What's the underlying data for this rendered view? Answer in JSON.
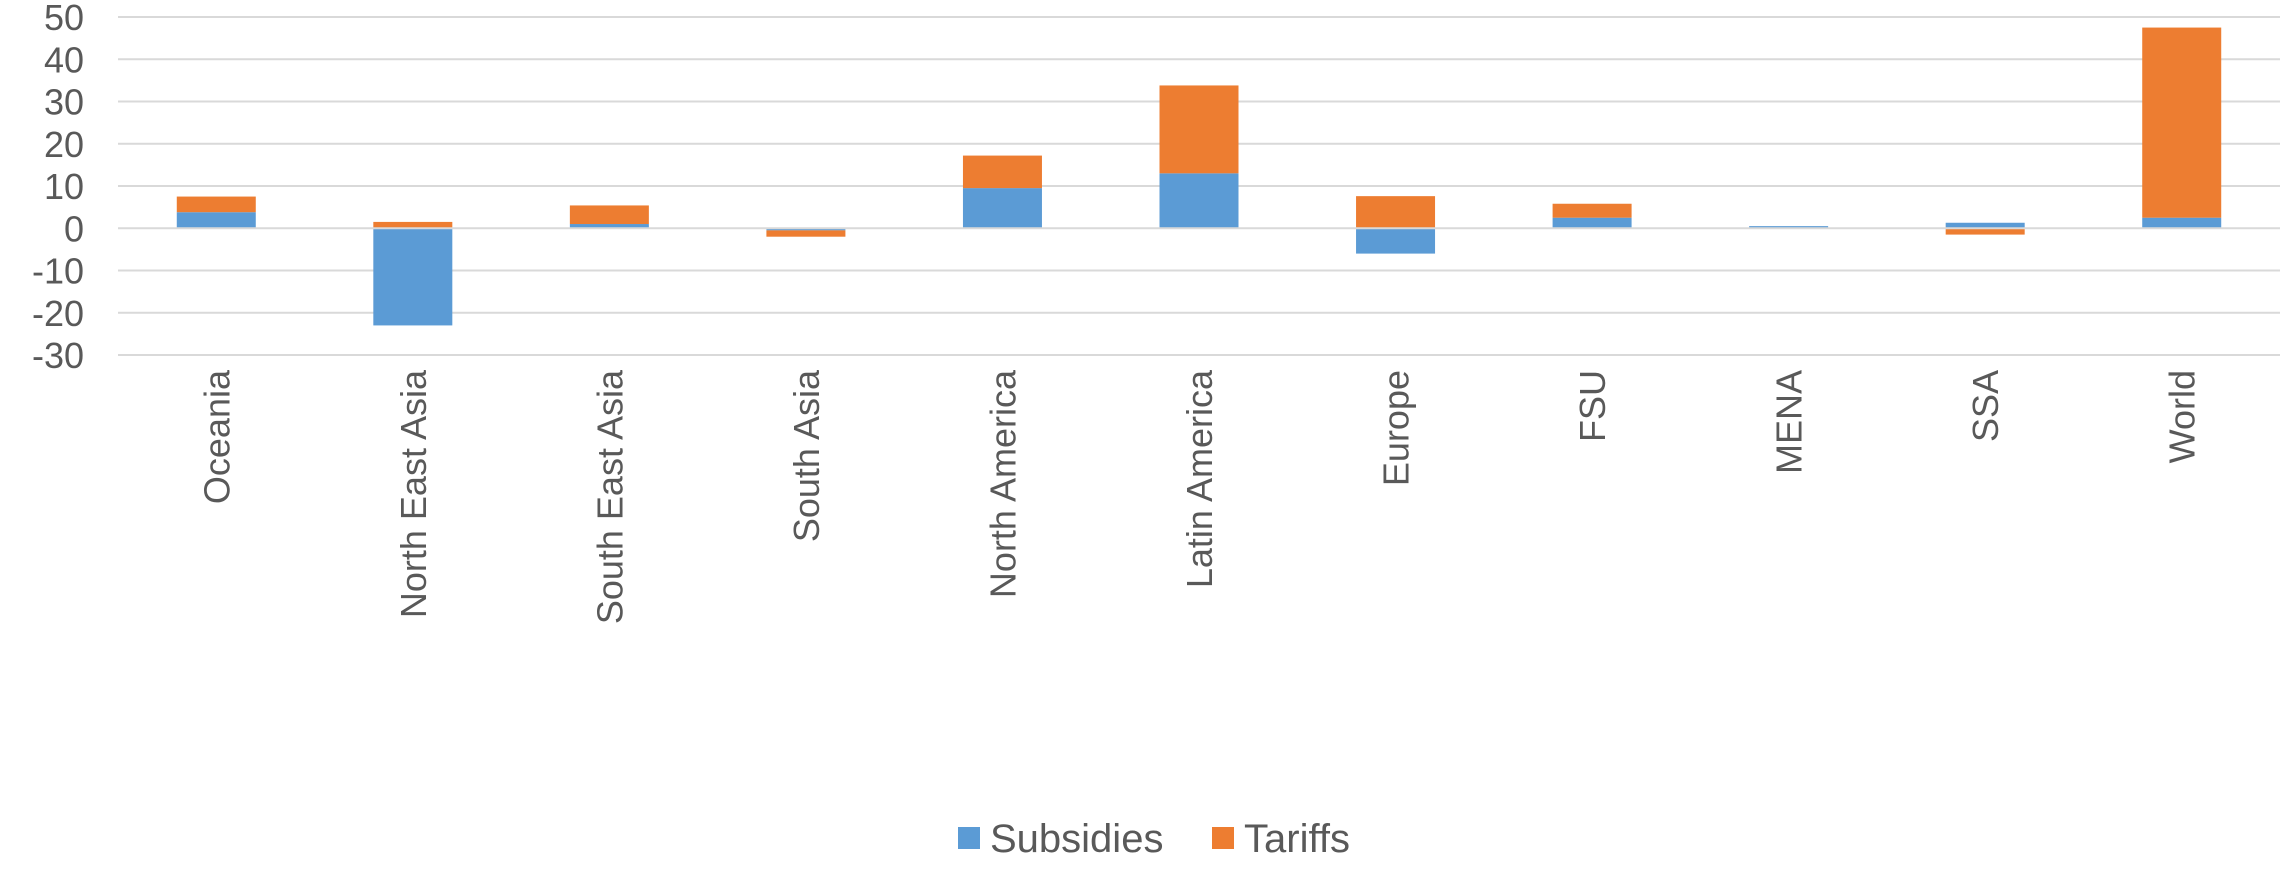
{
  "chart_data": {
    "type": "bar",
    "stacked": true,
    "categories": [
      "Oceania",
      "North East Asia",
      "South East Asia",
      "South Asia",
      "North America",
      "Latin America",
      "Europe",
      "FSU",
      "MENA",
      "SSA",
      "World"
    ],
    "series": [
      {
        "name": "Subsidies",
        "color": "#5B9BD5",
        "values": [
          3.8,
          -23.0,
          1.0,
          -0.5,
          9.5,
          13.0,
          -6.0,
          2.5,
          0.5,
          1.3,
          2.5
        ]
      },
      {
        "name": "Tariffs",
        "color": "#ED7D31",
        "values": [
          3.7,
          1.5,
          4.4,
          -1.5,
          7.7,
          20.8,
          7.6,
          3.3,
          0.0,
          -1.5,
          45.0
        ]
      }
    ],
    "ylim": [
      -30,
      50
    ],
    "yticks": [
      "50",
      "40",
      "30",
      "20",
      "10",
      "0",
      "-10",
      "-20",
      "-30"
    ],
    "grid": true,
    "legend_position": "bottom",
    "title": "",
    "xlabel": "",
    "ylabel": ""
  }
}
